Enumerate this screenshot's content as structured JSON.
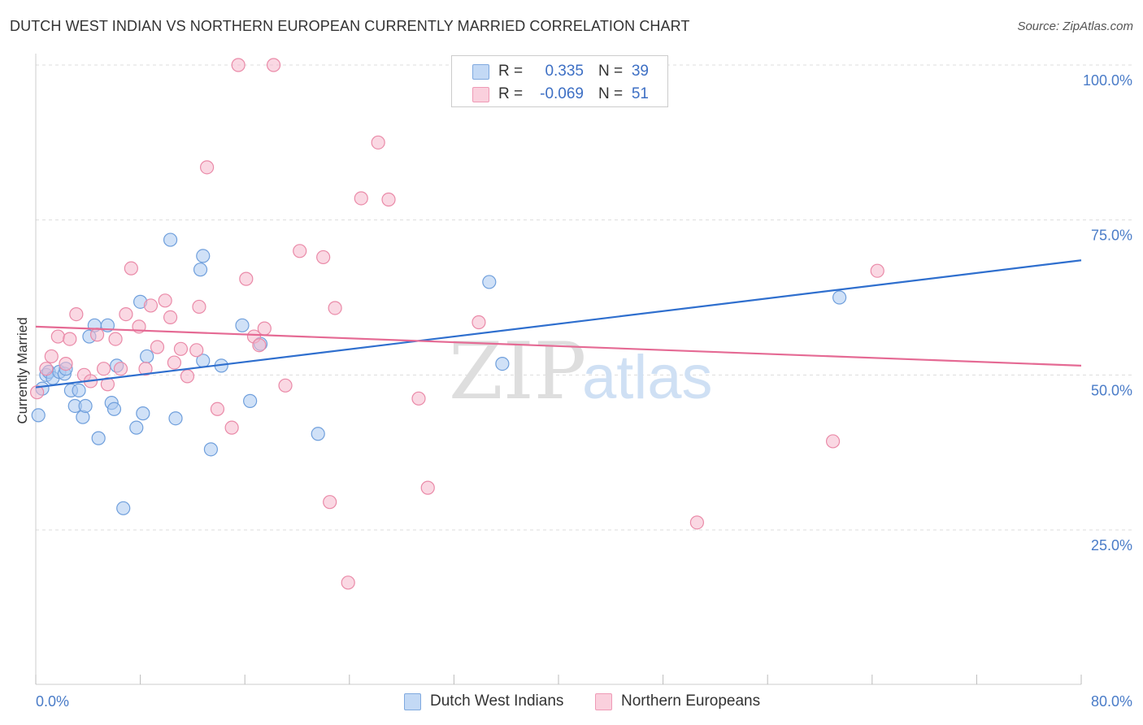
{
  "title": "DUTCH WEST INDIAN VS NORTHERN EUROPEAN CURRENTLY MARRIED CORRELATION CHART",
  "source": "Source: ZipAtlas.com",
  "watermark": {
    "part1": "ZIP",
    "part2": "atlas"
  },
  "legend": {
    "rows": [
      {
        "r_label": "R =",
        "r_value": "0.335",
        "n_label": "N =",
        "n_value": "39",
        "color": "#a9c8f0"
      },
      {
        "r_label": "R =",
        "r_value": "-0.069",
        "n_label": "N =",
        "n_value": "51",
        "color": "#f6b8cc"
      }
    ]
  },
  "bottom_legend": [
    {
      "label": "Dutch West Indians",
      "color": "#a9c8f0"
    },
    {
      "label": "Northern Europeans",
      "color": "#f6b8cc"
    }
  ],
  "chart_data": {
    "type": "scatter",
    "title": "DUTCH WEST INDIAN VS NORTHERN EUROPEAN CURRENTLY MARRIED CORRELATION CHART",
    "xlabel": "",
    "ylabel": "Currently Married",
    "xlim": [
      0,
      80
    ],
    "ylim": [
      0,
      102
    ],
    "x_tick_labels": {
      "min": "0.0%",
      "max": "80.0%"
    },
    "y_ticks": [
      {
        "value": 25,
        "label": "25.0%"
      },
      {
        "value": 50,
        "label": "50.0%"
      },
      {
        "value": 75,
        "label": "75.0%"
      },
      {
        "value": 100,
        "label": "100.0%"
      }
    ],
    "grid": true,
    "series": [
      {
        "name": "Dutch West Indians",
        "color": "#a9c8f0",
        "stroke": "#6f9fdc",
        "trend": {
          "x": [
            0,
            80
          ],
          "y": [
            48.0,
            68.5
          ],
          "color": "#2f6fce"
        },
        "points": [
          {
            "x": 0.2,
            "y": 43.5
          },
          {
            "x": 0.5,
            "y": 47.8
          },
          {
            "x": 0.8,
            "y": 50.0
          },
          {
            "x": 1.0,
            "y": 50.5
          },
          {
            "x": 1.3,
            "y": 49.5
          },
          {
            "x": 1.8,
            "y": 50.5
          },
          {
            "x": 2.2,
            "y": 50.2
          },
          {
            "x": 2.3,
            "y": 51.0
          },
          {
            "x": 2.7,
            "y": 47.5
          },
          {
            "x": 3.0,
            "y": 45.0
          },
          {
            "x": 3.3,
            "y": 47.5
          },
          {
            "x": 3.6,
            "y": 43.2
          },
          {
            "x": 3.8,
            "y": 45.0
          },
          {
            "x": 4.1,
            "y": 56.2
          },
          {
            "x": 4.5,
            "y": 58.0
          },
          {
            "x": 4.8,
            "y": 39.8
          },
          {
            "x": 5.5,
            "y": 58.0
          },
          {
            "x": 5.8,
            "y": 45.5
          },
          {
            "x": 6.0,
            "y": 44.5
          },
          {
            "x": 6.2,
            "y": 51.5
          },
          {
            "x": 6.7,
            "y": 28.5
          },
          {
            "x": 7.7,
            "y": 41.5
          },
          {
            "x": 8.0,
            "y": 61.8
          },
          {
            "x": 8.2,
            "y": 43.8
          },
          {
            "x": 8.5,
            "y": 53.0
          },
          {
            "x": 10.3,
            "y": 71.8
          },
          {
            "x": 10.7,
            "y": 43.0
          },
          {
            "x": 12.6,
            "y": 67.0
          },
          {
            "x": 12.8,
            "y": 69.2
          },
          {
            "x": 12.8,
            "y": 52.3
          },
          {
            "x": 13.4,
            "y": 38.0
          },
          {
            "x": 14.2,
            "y": 51.5
          },
          {
            "x": 15.8,
            "y": 58.0
          },
          {
            "x": 16.4,
            "y": 45.8
          },
          {
            "x": 17.2,
            "y": 55.0
          },
          {
            "x": 21.6,
            "y": 40.5
          },
          {
            "x": 34.7,
            "y": 65.0
          },
          {
            "x": 35.7,
            "y": 51.8
          },
          {
            "x": 61.5,
            "y": 62.5
          }
        ]
      },
      {
        "name": "Northern Europeans",
        "color": "#f6b8cc",
        "stroke": "#ea8aa8",
        "trend": {
          "x": [
            0,
            80
          ],
          "y": [
            57.8,
            51.5
          ],
          "color": "#e56a94"
        },
        "points": [
          {
            "x": 0.1,
            "y": 47.2
          },
          {
            "x": 0.8,
            "y": 51.0
          },
          {
            "x": 1.2,
            "y": 53.0
          },
          {
            "x": 1.7,
            "y": 56.2
          },
          {
            "x": 2.3,
            "y": 51.8
          },
          {
            "x": 2.6,
            "y": 55.8
          },
          {
            "x": 3.1,
            "y": 59.8
          },
          {
            "x": 3.7,
            "y": 50.0
          },
          {
            "x": 4.2,
            "y": 49.0
          },
          {
            "x": 4.7,
            "y": 56.5
          },
          {
            "x": 5.2,
            "y": 51.0
          },
          {
            "x": 5.5,
            "y": 48.5
          },
          {
            "x": 6.1,
            "y": 55.8
          },
          {
            "x": 6.5,
            "y": 51.0
          },
          {
            "x": 6.9,
            "y": 59.8
          },
          {
            "x": 7.3,
            "y": 67.2
          },
          {
            "x": 7.9,
            "y": 57.8
          },
          {
            "x": 8.4,
            "y": 51.0
          },
          {
            "x": 8.8,
            "y": 61.2
          },
          {
            "x": 9.3,
            "y": 54.5
          },
          {
            "x": 9.9,
            "y": 62.0
          },
          {
            "x": 10.3,
            "y": 59.3
          },
          {
            "x": 10.6,
            "y": 52.0
          },
          {
            "x": 11.1,
            "y": 54.2
          },
          {
            "x": 11.6,
            "y": 49.8
          },
          {
            "x": 12.3,
            "y": 54.0
          },
          {
            "x": 12.5,
            "y": 61.0
          },
          {
            "x": 13.1,
            "y": 83.5
          },
          {
            "x": 13.9,
            "y": 44.5
          },
          {
            "x": 15.0,
            "y": 41.5
          },
          {
            "x": 15.5,
            "y": 100.0
          },
          {
            "x": 16.1,
            "y": 65.5
          },
          {
            "x": 16.7,
            "y": 56.2
          },
          {
            "x": 17.1,
            "y": 54.8
          },
          {
            "x": 17.5,
            "y": 57.5
          },
          {
            "x": 18.2,
            "y": 100.0
          },
          {
            "x": 19.1,
            "y": 48.3
          },
          {
            "x": 20.2,
            "y": 70.0
          },
          {
            "x": 22.0,
            "y": 69.0
          },
          {
            "x": 22.5,
            "y": 29.5
          },
          {
            "x": 22.9,
            "y": 60.8
          },
          {
            "x": 23.9,
            "y": 16.5
          },
          {
            "x": 24.9,
            "y": 78.5
          },
          {
            "x": 26.2,
            "y": 87.5
          },
          {
            "x": 27.0,
            "y": 78.3
          },
          {
            "x": 29.3,
            "y": 46.2
          },
          {
            "x": 30.0,
            "y": 31.8
          },
          {
            "x": 33.9,
            "y": 58.5
          },
          {
            "x": 50.6,
            "y": 26.2
          },
          {
            "x": 61.0,
            "y": 39.3
          },
          {
            "x": 64.4,
            "y": 66.8
          }
        ]
      }
    ]
  }
}
